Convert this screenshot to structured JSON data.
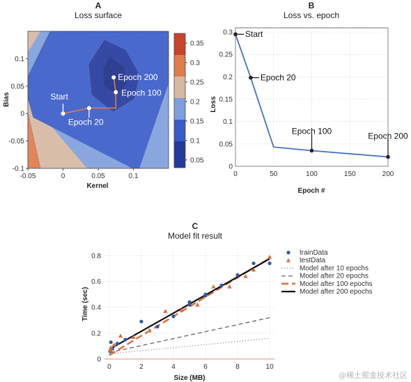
{
  "chart_data": [
    {
      "panel": "A",
      "type": "heatmap",
      "title": "Loss surface",
      "xlabel": "Kernel",
      "ylabel": "Bias",
      "xlim": [
        -0.05,
        0.15
      ],
      "ylim": [
        -0.1,
        0.15
      ],
      "xticks": [
        -0.05,
        0,
        0.05,
        0.1
      ],
      "yticks": [
        -0.1,
        -0.05,
        0,
        0.05,
        0.1
      ],
      "colorbar_ticks": [
        0.05,
        0.1,
        0.15,
        0.2,
        0.25,
        0.3,
        0.35
      ],
      "contour_levels": [
        0.05,
        0.1,
        0.15,
        0.2,
        0.25,
        0.3,
        0.35
      ],
      "colors": [
        "#243a9c",
        "#3a5cc8",
        "#7f9fdc",
        "#d6b8a3",
        "#e07b4d",
        "#c9432a"
      ],
      "path": [
        {
          "x": 0.0,
          "y": 0.0
        },
        {
          "x": 0.037,
          "y": 0.01
        },
        {
          "x": 0.075,
          "y": 0.01
        },
        {
          "x": 0.075,
          "y": 0.039
        },
        {
          "x": 0.072,
          "y": 0.066
        }
      ],
      "annotations": [
        {
          "text": "Start",
          "x": 0.0,
          "y": 0.0,
          "color": "#ffffff"
        },
        {
          "text": "Epoch 20",
          "x": 0.037,
          "y": 0.01,
          "color": "#ffffff"
        },
        {
          "text": "Epoch 100",
          "x": 0.075,
          "y": 0.039,
          "color": "#ffffff"
        },
        {
          "text": "Epoch 200",
          "x": 0.072,
          "y": 0.066,
          "color": "#ffffff"
        }
      ]
    },
    {
      "panel": "B",
      "type": "line",
      "title": "Loss vs. epoch",
      "xlabel": "Epoch #",
      "ylabel": "Loss",
      "xlim": [
        0,
        200
      ],
      "ylim": [
        0,
        0.3
      ],
      "xticks": [
        0,
        50,
        100,
        150,
        200
      ],
      "yticks": [
        0,
        0.05,
        0.1,
        0.15,
        0.2,
        0.25,
        0.3
      ],
      "x": [
        0,
        20,
        50,
        100,
        200
      ],
      "y": [
        0.295,
        0.198,
        0.043,
        0.035,
        0.021
      ],
      "color": "#4472c4",
      "annotations": [
        {
          "text": "Start",
          "x": 0,
          "y": 0.295
        },
        {
          "text": "Epoch 20",
          "x": 20,
          "y": 0.198
        },
        {
          "text": "Epoch 100",
          "x": 100,
          "y": 0.035
        },
        {
          "text": "Epoch 200",
          "x": 200,
          "y": 0.021
        }
      ]
    },
    {
      "panel": "C",
      "type": "scatter",
      "title": "Model fit result",
      "xlabel": "Size (MB)",
      "ylabel": "Time (sec)",
      "xlim": [
        -0.3,
        10.3
      ],
      "ylim": [
        0,
        0.85
      ],
      "xticks": [
        0,
        2,
        4,
        6,
        8,
        10
      ],
      "yticks": [
        0,
        0.2,
        0.4,
        0.6,
        0.8
      ],
      "series": [
        {
          "name": "trainData",
          "kind": "points",
          "marker": "circle",
          "color": "#2e5aa8",
          "x": [
            0.05,
            0.1,
            0.2,
            0.5,
            1,
            2,
            3,
            4,
            5,
            5,
            6,
            6,
            7,
            8,
            9,
            10
          ],
          "y": [
            0.06,
            0.13,
            0.08,
            0.12,
            0.15,
            0.29,
            0.25,
            0.33,
            0.44,
            0.42,
            0.5,
            0.49,
            0.57,
            0.65,
            0.74,
            0.74
          ]
        },
        {
          "name": "testData",
          "kind": "points",
          "marker": "triangle",
          "color": "#d9703f",
          "x": [
            0.05,
            0.1,
            0.3,
            0.7,
            1.5,
            2.5,
            3.5,
            4.5,
            5.5,
            6.5,
            7.5,
            8.5,
            9,
            10
          ],
          "y": [
            0.07,
            0.09,
            0.11,
            0.18,
            0.17,
            0.22,
            0.37,
            0.38,
            0.42,
            0.56,
            0.56,
            0.64,
            0.69,
            0.79
          ]
        },
        {
          "name": "Model after 10 epochs",
          "kind": "line",
          "dash": "1,3",
          "width": 1.1,
          "color": "#666666",
          "x": [
            0,
            10
          ],
          "y": [
            0.04,
            0.16
          ]
        },
        {
          "name": "Model after 20 epochs",
          "kind": "line",
          "dash": "6,4",
          "width": 1.3,
          "color": "#666666",
          "x": [
            0,
            10
          ],
          "y": [
            0.05,
            0.32
          ]
        },
        {
          "name": "Model after 100 epochs",
          "kind": "line",
          "dash": "10,5",
          "width": 2.5,
          "color": "#d9703f",
          "x": [
            0,
            10
          ],
          "y": [
            0.03,
            0.78
          ]
        },
        {
          "name": "Model after 200 epochs",
          "kind": "line",
          "dash": "",
          "width": 2.2,
          "color": "#111111",
          "x": [
            0,
            10
          ],
          "y": [
            0.075,
            0.775
          ]
        }
      ]
    }
  ],
  "watermark": "@稀土掘金技术社区"
}
